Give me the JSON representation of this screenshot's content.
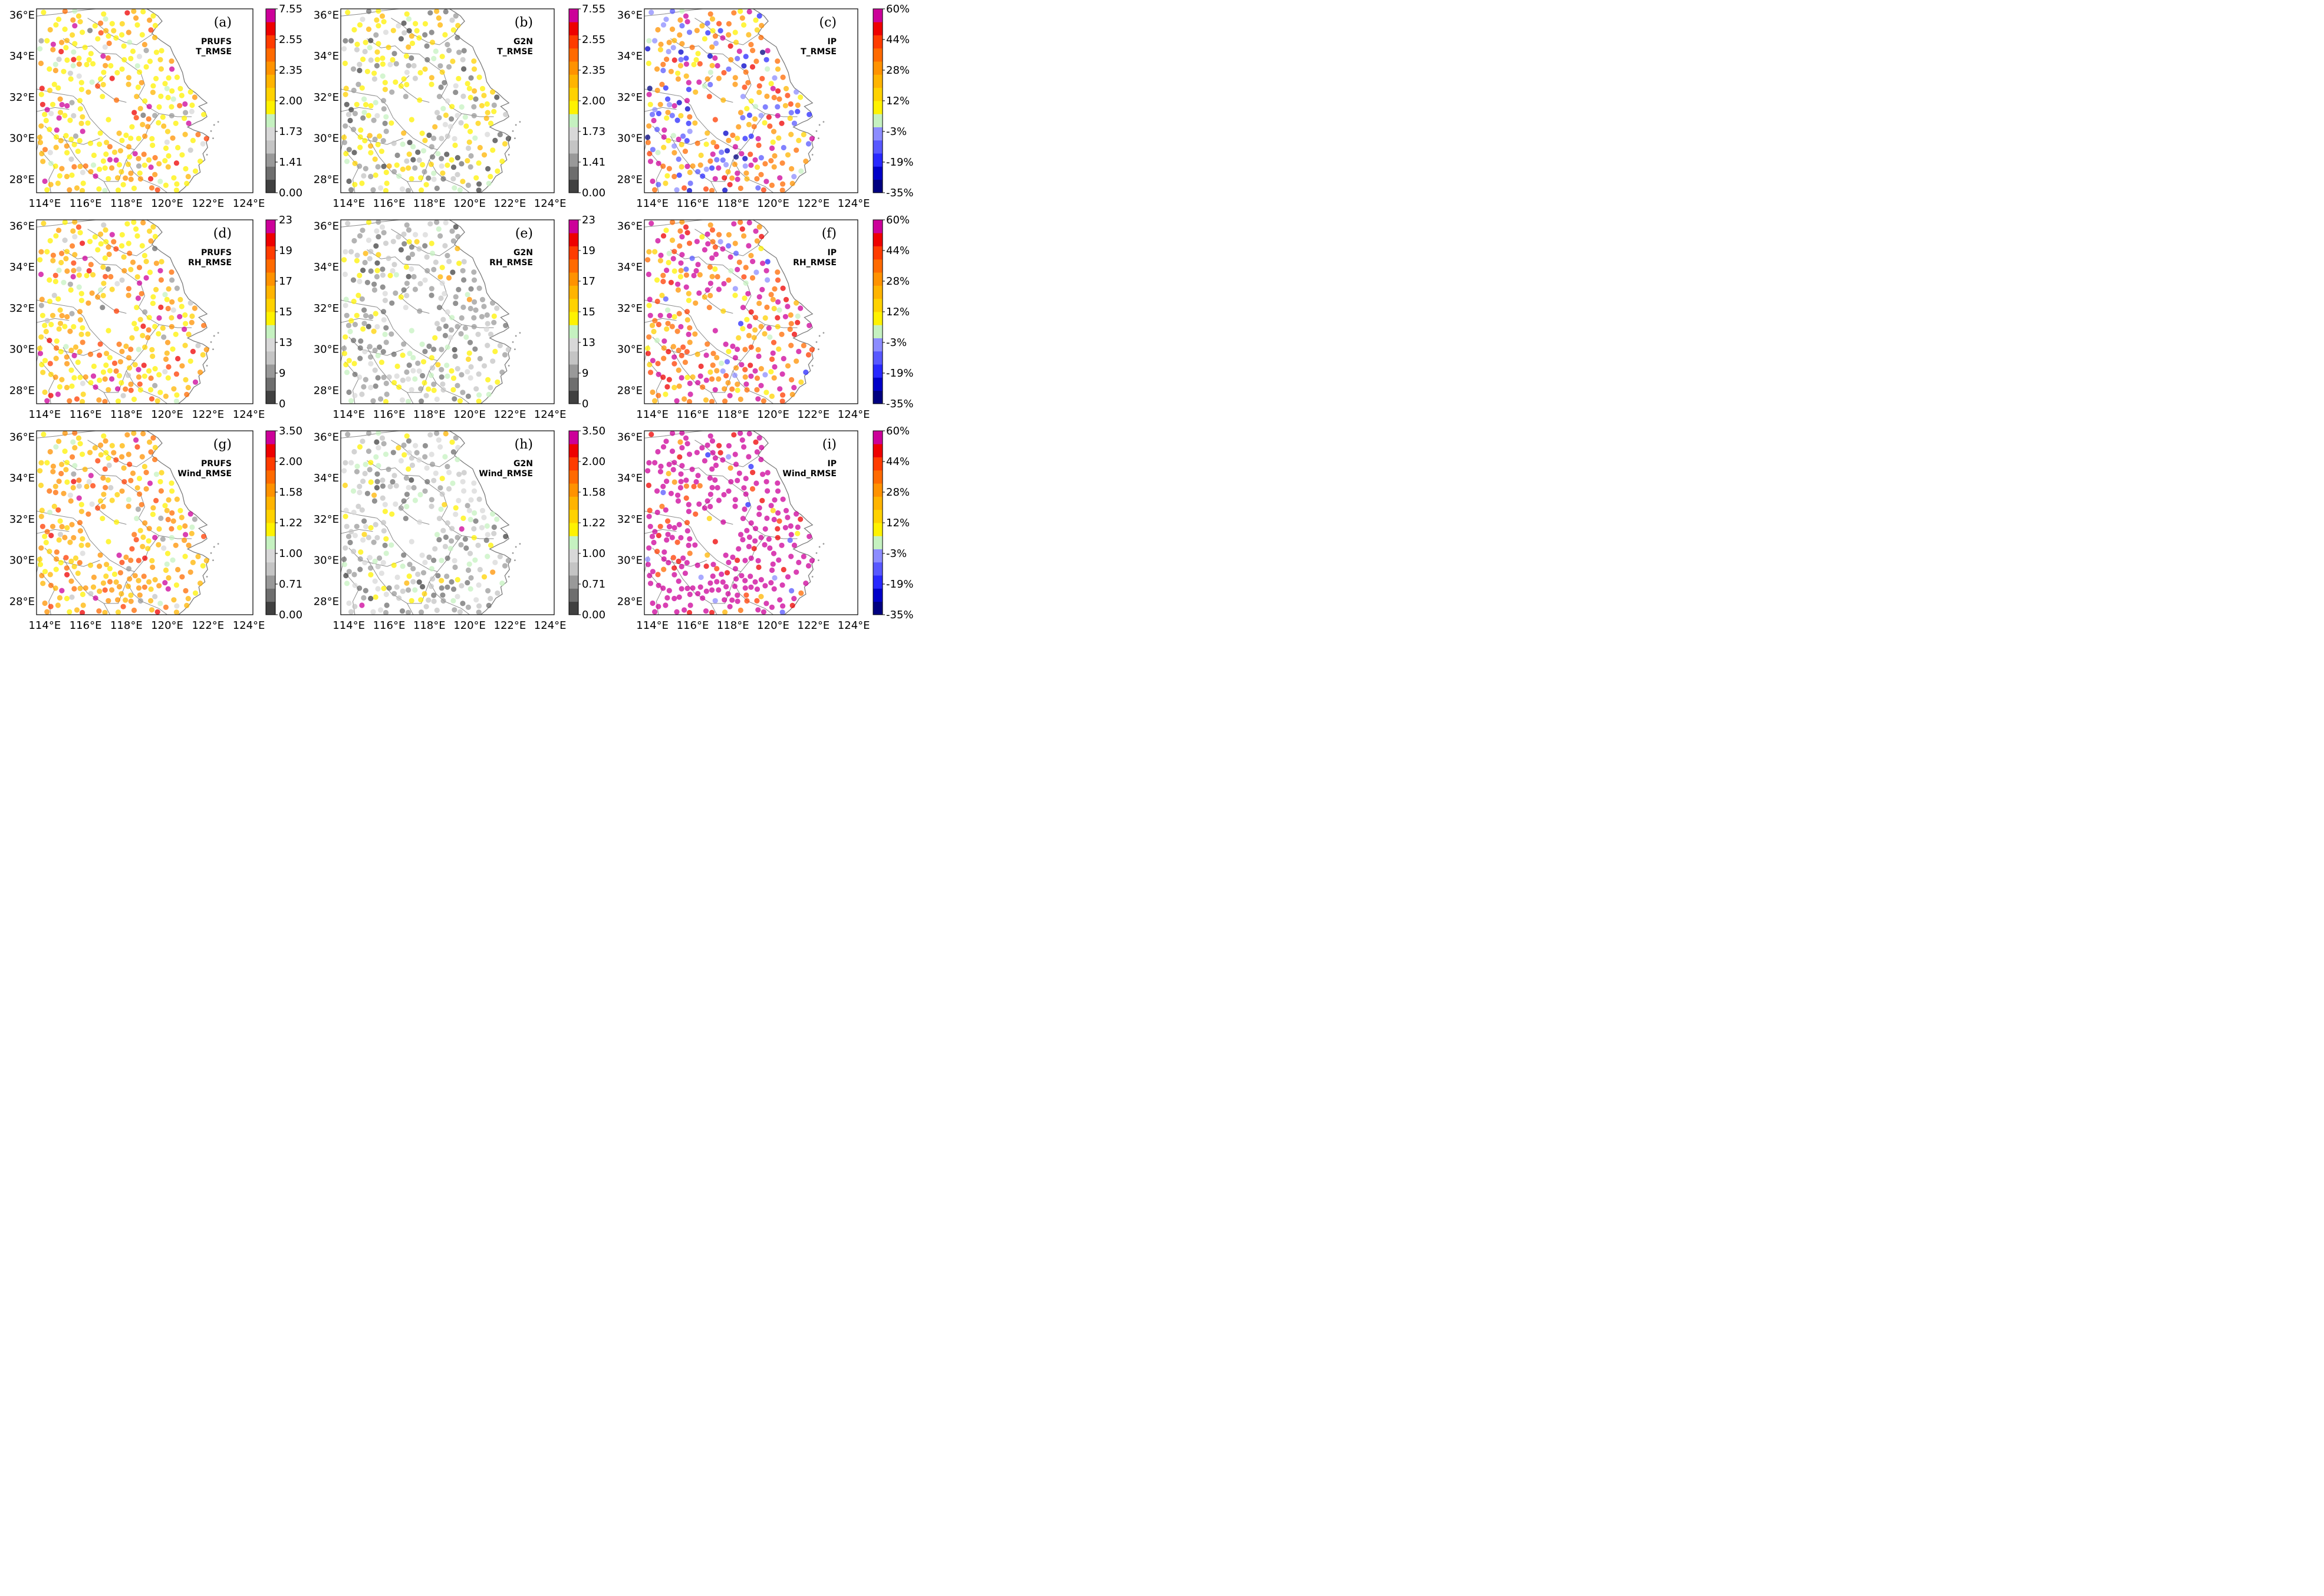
{
  "figure": {
    "lon_ticks": [
      "114°E",
      "116°E",
      "118°E",
      "120°E",
      "122°E",
      "124°E"
    ],
    "lat_ticks": [
      "36°E",
      "34°E",
      "32°E",
      "30°E",
      "28°E"
    ],
    "map_extent": {
      "lon": [
        113.6,
        124.2
      ],
      "lat": [
        27.35,
        36.3
      ]
    },
    "marker_alpha": 0.75
  },
  "colorbars": {
    "T_RMSE": {
      "labels": [
        "0.00",
        "1.41",
        "1.73",
        "2.00",
        "2.35",
        "2.55",
        "7.55"
      ],
      "colors": [
        "#404040",
        "#6e6e6e",
        "#999999",
        "#c4c4c4",
        "#d8d8d8",
        "#c5f1c0",
        "#fff200",
        "#ffd200",
        "#ffb400",
        "#ff9200",
        "#ff6a00",
        "#ff3c00",
        "#ee0000",
        "#cc0099"
      ]
    },
    "RH_RMSE": {
      "labels": [
        "0",
        "9",
        "13",
        "15",
        "17",
        "19",
        "23"
      ],
      "colors": [
        "#404040",
        "#6e6e6e",
        "#999999",
        "#c4c4c4",
        "#d8d8d8",
        "#c5f1c0",
        "#fff200",
        "#ffd200",
        "#ffb400",
        "#ff9200",
        "#ff6a00",
        "#ff3c00",
        "#ee0000",
        "#cc0099"
      ]
    },
    "Wind_RMSE": {
      "labels": [
        "0.00",
        "0.71",
        "1.00",
        "1.22",
        "1.58",
        "2.00",
        "3.50"
      ],
      "colors": [
        "#404040",
        "#6e6e6e",
        "#999999",
        "#c4c4c4",
        "#d8d8d8",
        "#c5f1c0",
        "#fff200",
        "#ffd200",
        "#ffb400",
        "#ff9200",
        "#ff6a00",
        "#ff3c00",
        "#ee0000",
        "#cc0099"
      ]
    },
    "IP": {
      "labels": [
        "-35%",
        "-19%",
        "-3%",
        "12%",
        "28%",
        "44%",
        "60%"
      ],
      "colors": [
        "#000080",
        "#0000c8",
        "#2828ff",
        "#5858ff",
        "#8c8cff",
        "#c5f1c0",
        "#fff200",
        "#ffd200",
        "#ffb400",
        "#ff9200",
        "#ff6a00",
        "#ff3c00",
        "#ee0000",
        "#cc0099"
      ]
    }
  },
  "panels": [
    {
      "letter": "(a)",
      "model": "PRUFS",
      "metric": "T_RMSE",
      "cbar": "T_RMSE",
      "seed": 11,
      "weights": [
        0.0,
        0.01,
        0.03,
        0.03,
        0.02,
        0.06,
        0.4,
        0.1,
        0.1,
        0.08,
        0.04,
        0.03,
        0.03,
        0.07
      ]
    },
    {
      "letter": "(b)",
      "model": "G2N",
      "metric": "T_RMSE",
      "cbar": "T_RMSE",
      "seed": 12,
      "weights": [
        0.06,
        0.12,
        0.16,
        0.1,
        0.06,
        0.07,
        0.3,
        0.08,
        0.05,
        0.0,
        0.0,
        0.0,
        0.0,
        0.0
      ]
    },
    {
      "letter": "(c)",
      "model": "IP",
      "metric": "T_RMSE",
      "cbar": "IP",
      "seed": 13,
      "weights": [
        0.02,
        0.03,
        0.08,
        0.08,
        0.07,
        0.04,
        0.08,
        0.06,
        0.08,
        0.12,
        0.12,
        0.06,
        0.04,
        0.12
      ]
    },
    {
      "letter": "(d)",
      "model": "PRUFS",
      "metric": "RH_RMSE",
      "cbar": "RH_RMSE",
      "seed": 21,
      "weights": [
        0.0,
        0.01,
        0.03,
        0.03,
        0.02,
        0.04,
        0.25,
        0.12,
        0.12,
        0.12,
        0.08,
        0.06,
        0.04,
        0.08
      ]
    },
    {
      "letter": "(e)",
      "model": "G2N",
      "metric": "RH_RMSE",
      "cbar": "RH_RMSE",
      "seed": 22,
      "weights": [
        0.02,
        0.14,
        0.3,
        0.18,
        0.12,
        0.08,
        0.12,
        0.02,
        0.01,
        0.01,
        0.0,
        0.0,
        0.0,
        0.0
      ]
    },
    {
      "letter": "(f)",
      "model": "IP",
      "metric": "RH_RMSE",
      "cbar": "IP",
      "seed": 23,
      "weights": [
        0.0,
        0.0,
        0.02,
        0.02,
        0.02,
        0.02,
        0.05,
        0.04,
        0.06,
        0.12,
        0.18,
        0.12,
        0.06,
        0.29
      ]
    },
    {
      "letter": "(g)",
      "model": "PRUFS",
      "metric": "Wind_RMSE",
      "cbar": "Wind_RMSE",
      "seed": 31,
      "weights": [
        0.0,
        0.0,
        0.01,
        0.02,
        0.03,
        0.04,
        0.14,
        0.14,
        0.18,
        0.2,
        0.1,
        0.06,
        0.03,
        0.05
      ]
    },
    {
      "letter": "(h)",
      "model": "G2N",
      "metric": "Wind_RMSE",
      "cbar": "Wind_RMSE",
      "seed": 32,
      "weights": [
        0.03,
        0.16,
        0.22,
        0.2,
        0.14,
        0.1,
        0.1,
        0.02,
        0.01,
        0.01,
        0.0,
        0.0,
        0.0,
        0.01
      ]
    },
    {
      "letter": "(i)",
      "model": "IP",
      "metric": "Wind_RMSE",
      "cbar": "IP",
      "seed": 33,
      "weights": [
        0.0,
        0.0,
        0.01,
        0.01,
        0.01,
        0.0,
        0.01,
        0.01,
        0.01,
        0.02,
        0.04,
        0.08,
        0.08,
        0.72
      ]
    }
  ]
}
